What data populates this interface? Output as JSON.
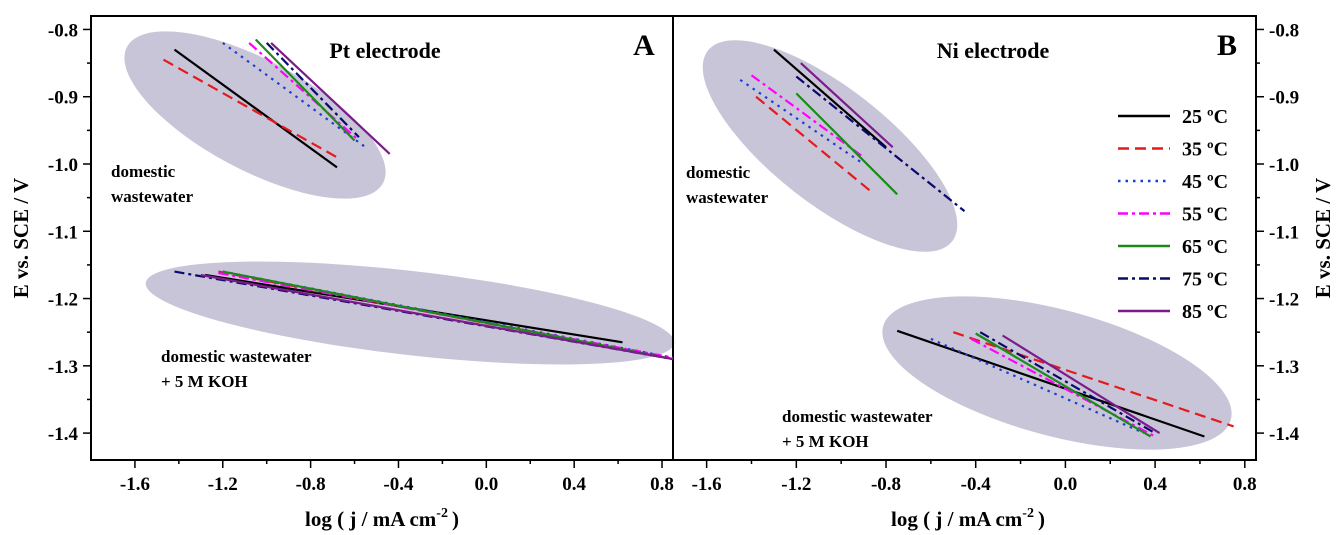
{
  "chart_data": [
    {
      "type": "line",
      "panel_letter": "A",
      "title": "Pt electrode",
      "xlabel": "log ( j / mA cm",
      "xlabel_sup": "-2",
      "xlabel_end": ")",
      "ylabel": "E vs. SCE / V",
      "xlim": [
        -1.8,
        0.85
      ],
      "ylim": [
        -1.44,
        -0.78
      ],
      "xticks": [
        "-1.6",
        "-1.2",
        "-0.8",
        "-0.4",
        "0.0",
        "0.4",
        "0.8"
      ],
      "yticks": [
        "-0.8",
        "-0.9",
        "-1.0",
        "-1.1",
        "-1.2",
        "-1.3",
        "-1.4"
      ],
      "annotations": [
        {
          "lines": [
            "domestic",
            "wastewater"
          ]
        },
        {
          "lines": [
            "domestic wastewater",
            "+ 5 M KOH"
          ]
        }
      ],
      "series": [
        {
          "name": "25 ºC",
          "color": "#000000",
          "dash": "solid",
          "groups": [
            [
              [
                -1.42,
                -0.83
              ],
              [
                -0.68,
                -1.005
              ]
            ],
            [
              [
                -1.28,
                -1.165
              ],
              [
                0.62,
                -1.265
              ]
            ]
          ]
        },
        {
          "name": "35 ºC",
          "color": "#e41a1c",
          "dash": "dashed",
          "groups": [
            [
              [
                -1.47,
                -0.845
              ],
              [
                -0.68,
                -0.99
              ]
            ],
            [
              [
                -1.22,
                -1.16
              ],
              [
                0.85,
                -1.29
              ]
            ]
          ]
        },
        {
          "name": "45 ºC",
          "color": "#1f3cd6",
          "dash": "dotted",
          "groups": [
            [
              [
                -1.2,
                -0.82
              ],
              [
                -0.55,
                -0.975
              ]
            ],
            [
              [
                -1.2,
                -1.16
              ],
              [
                0.85,
                -1.288
              ]
            ]
          ]
        },
        {
          "name": "55 ºC",
          "color": "#ff00ff",
          "dash": "dashdot",
          "groups": [
            [
              [
                -1.08,
                -0.82
              ],
              [
                -0.58,
                -0.965
              ]
            ],
            [
              [
                -1.22,
                -1.162
              ],
              [
                0.85,
                -1.288
              ]
            ]
          ]
        },
        {
          "name": "65 ºC",
          "color": "#1a8a1a",
          "dash": "solid",
          "groups": [
            [
              [
                -1.05,
                -0.815
              ],
              [
                -0.6,
                -0.965
              ]
            ],
            [
              [
                -1.2,
                -1.16
              ],
              [
                0.85,
                -1.29
              ]
            ]
          ]
        },
        {
          "name": "75 ºC",
          "color": "#0a0a6e",
          "dash": "dashdot",
          "groups": [
            [
              [
                -1.0,
                -0.82
              ],
              [
                -0.58,
                -0.96
              ]
            ],
            [
              [
                -1.42,
                -1.16
              ],
              [
                0.85,
                -1.29
              ]
            ]
          ]
        },
        {
          "name": "85 ºC",
          "color": "#7b1b8c",
          "dash": "solid",
          "groups": [
            [
              [
                -0.98,
                -0.82
              ],
              [
                -0.44,
                -0.985
              ]
            ],
            [
              [
                -1.3,
                -1.165
              ],
              [
                0.85,
                -1.29
              ]
            ]
          ]
        }
      ]
    },
    {
      "type": "line",
      "panel_letter": "B",
      "title": "Ni electrode",
      "xlabel": "log ( j / mA cm",
      "xlabel_sup": "-2",
      "xlabel_end": ")",
      "ylabel": "E vs. SCE / V",
      "xlim": [
        -1.75,
        0.85
      ],
      "ylim": [
        -1.44,
        -0.78
      ],
      "xticks": [
        "-1.6",
        "-1.2",
        "-0.8",
        "-0.4",
        "0.0",
        "0.4",
        "0.8"
      ],
      "yticks": [
        "-0.8",
        "-0.9",
        "-1.0",
        "-1.1",
        "-1.2",
        "-1.3",
        "-1.4"
      ],
      "annotations": [
        {
          "lines": [
            "domestic",
            "wastewater"
          ]
        },
        {
          "lines": [
            "domestic wastewater",
            "+ 5 M KOH"
          ]
        }
      ],
      "series": [
        {
          "name": "25 ºC",
          "color": "#000000",
          "dash": "solid",
          "groups": [
            [
              [
                -1.3,
                -0.83
              ],
              [
                -0.8,
                -0.975
              ]
            ],
            [
              [
                -0.75,
                -1.248
              ],
              [
                0.62,
                -1.405
              ]
            ]
          ]
        },
        {
          "name": "35 ºC",
          "color": "#e41a1c",
          "dash": "dashed",
          "groups": [
            [
              [
                -1.38,
                -0.9
              ],
              [
                -0.87,
                -1.04
              ]
            ],
            [
              [
                -0.5,
                -1.25
              ],
              [
                0.75,
                -1.39
              ]
            ]
          ]
        },
        {
          "name": "45 ºC",
          "color": "#1f3cd6",
          "dash": "dotted",
          "groups": [
            [
              [
                -1.45,
                -0.875
              ],
              [
                -0.9,
                -1.0
              ]
            ],
            [
              [
                -0.6,
                -1.26
              ],
              [
                0.35,
                -1.4
              ]
            ]
          ]
        },
        {
          "name": "55 ºC",
          "color": "#ff00ff",
          "dash": "dashdot",
          "groups": [
            [
              [
                -1.4,
                -0.868
              ],
              [
                -0.9,
                -0.99
              ]
            ],
            [
              [
                -0.42,
                -1.26
              ],
              [
                0.4,
                -1.405
              ]
            ]
          ]
        },
        {
          "name": "65 ºC",
          "color": "#1a8a1a",
          "dash": "solid",
          "groups": [
            [
              [
                -1.2,
                -0.895
              ],
              [
                -0.75,
                -1.045
              ]
            ],
            [
              [
                -0.4,
                -1.252
              ],
              [
                0.38,
                -1.405
              ]
            ]
          ]
        },
        {
          "name": "75 ºC",
          "color": "#0a0a6e",
          "dash": "dashdot",
          "groups": [
            [
              [
                -1.2,
                -0.87
              ],
              [
                -0.45,
                -1.07
              ]
            ],
            [
              [
                -0.38,
                -1.25
              ],
              [
                0.4,
                -1.4
              ]
            ]
          ]
        },
        {
          "name": "85 ºC",
          "color": "#7b1b8c",
          "dash": "solid",
          "groups": [
            [
              [
                -1.18,
                -0.85
              ],
              [
                -0.77,
                -0.975
              ]
            ],
            [
              [
                -0.28,
                -1.255
              ],
              [
                0.42,
                -1.4
              ]
            ]
          ]
        }
      ]
    }
  ],
  "legend": {
    "items": [
      "25 ºC",
      "35 ºC",
      "45 ºC",
      "55 ºC",
      "65 ºC",
      "75 ºC",
      "85 ºC"
    ]
  }
}
